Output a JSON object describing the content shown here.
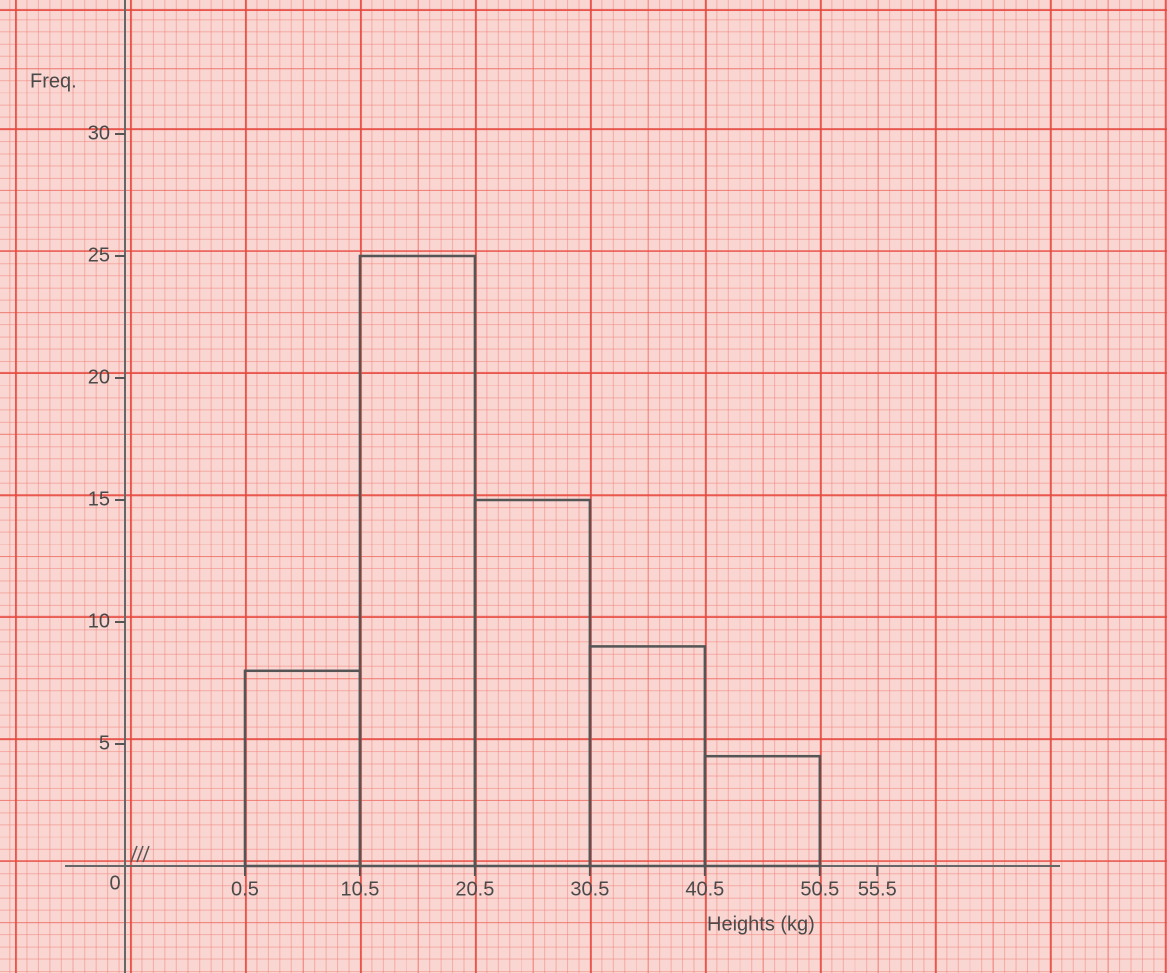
{
  "chart_data": {
    "type": "histogram",
    "bins": [
      0.5,
      10.5,
      20.5,
      30.5,
      40.5,
      50.5
    ],
    "counts": [
      8,
      25,
      15,
      9,
      4.5
    ],
    "color": "#555555",
    "xlabel": "Heights (kg)",
    "ylabel": "Freq.",
    "origin_label": "0",
    "xlim": [
      -10,
      70
    ],
    "ylim": [
      0,
      32
    ],
    "xticks": [
      0.5,
      10.5,
      20.5,
      30.5,
      40.5,
      50.5,
      55.5
    ],
    "yticks": [
      5,
      10,
      15,
      20,
      25,
      30
    ]
  }
}
